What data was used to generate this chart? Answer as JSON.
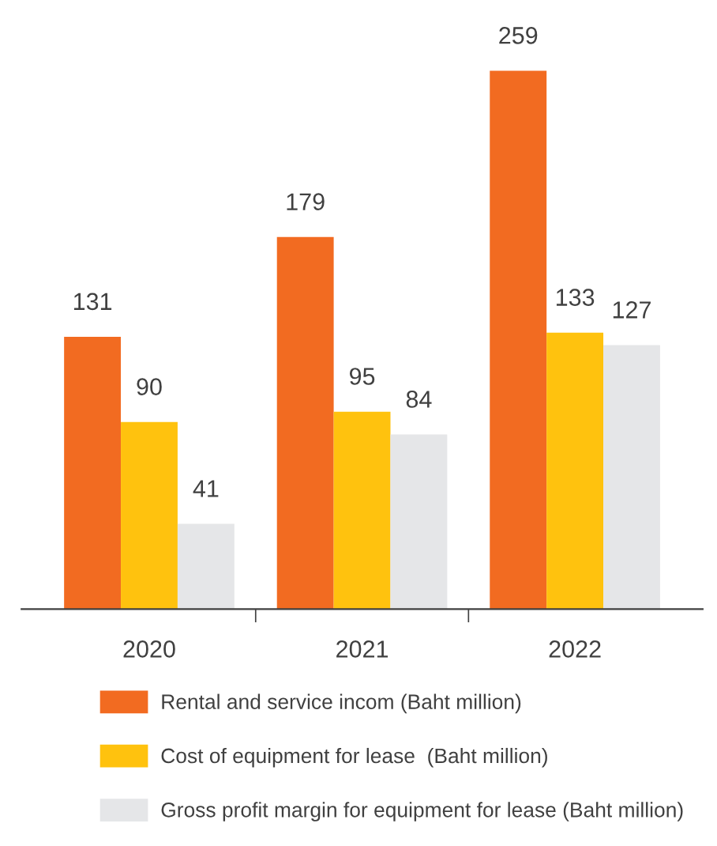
{
  "chart_data": {
    "type": "bar",
    "categories": [
      "2020",
      "2021",
      "2022"
    ],
    "series": [
      {
        "name": "Rental and service incom (Baht million)",
        "color": "#f26b21",
        "values": [
          131,
          179,
          259
        ]
      },
      {
        "name": "Cost of equipment for lease  (Baht million)",
        "color": "#ffc20e",
        "values": [
          90,
          95,
          133
        ]
      },
      {
        "name": "Gross profit margin for equipment for lease (Baht million)",
        "color": "#e5e6e8",
        "values": [
          41,
          84,
          127
        ]
      }
    ],
    "data_labels": true,
    "legend": "bottom",
    "grid": false
  }
}
